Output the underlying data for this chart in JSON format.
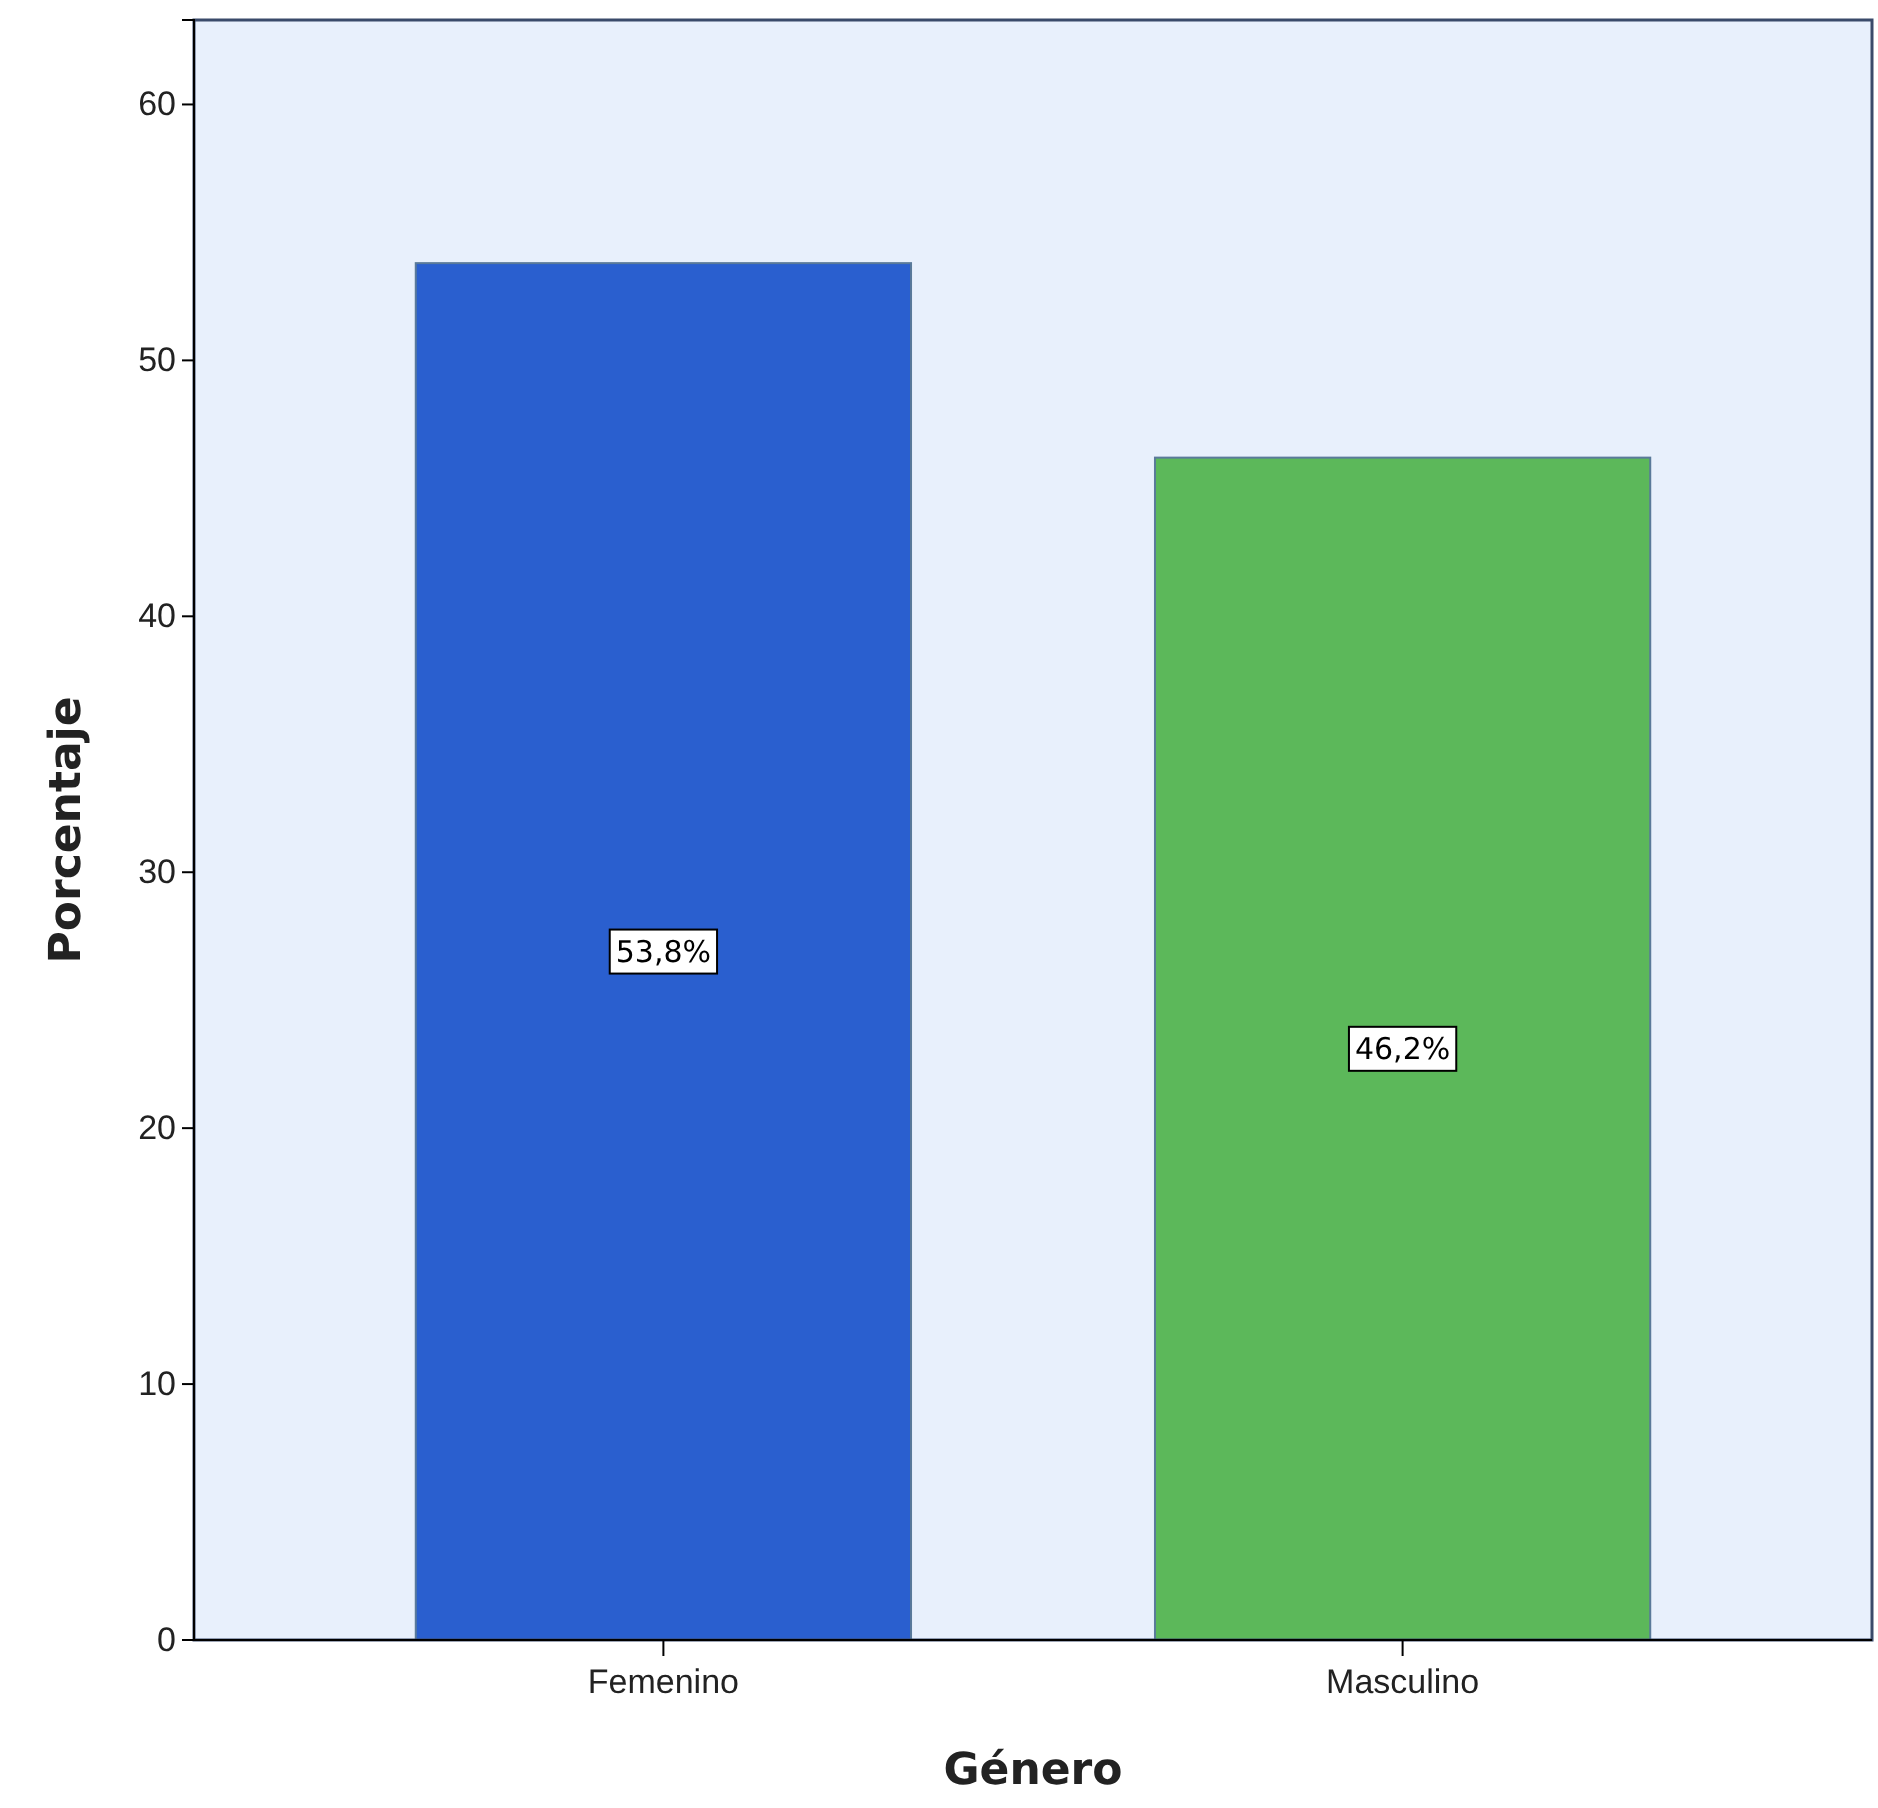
{
  "chart_data": {
    "type": "bar",
    "xlabel": "Género",
    "ylabel": "Porcentaje",
    "categories": [
      "Femenino",
      "Masculino"
    ],
    "values": [
      53.8,
      46.2
    ],
    "colors": [
      "#2a5fcf",
      "#5cb85a"
    ],
    "value_labels": [
      "53,8%",
      "46,2%"
    ],
    "ylim": [
      0,
      63.3
    ],
    "yticks": [
      0,
      10,
      20,
      30,
      40,
      50,
      60
    ],
    "grid": false
  }
}
